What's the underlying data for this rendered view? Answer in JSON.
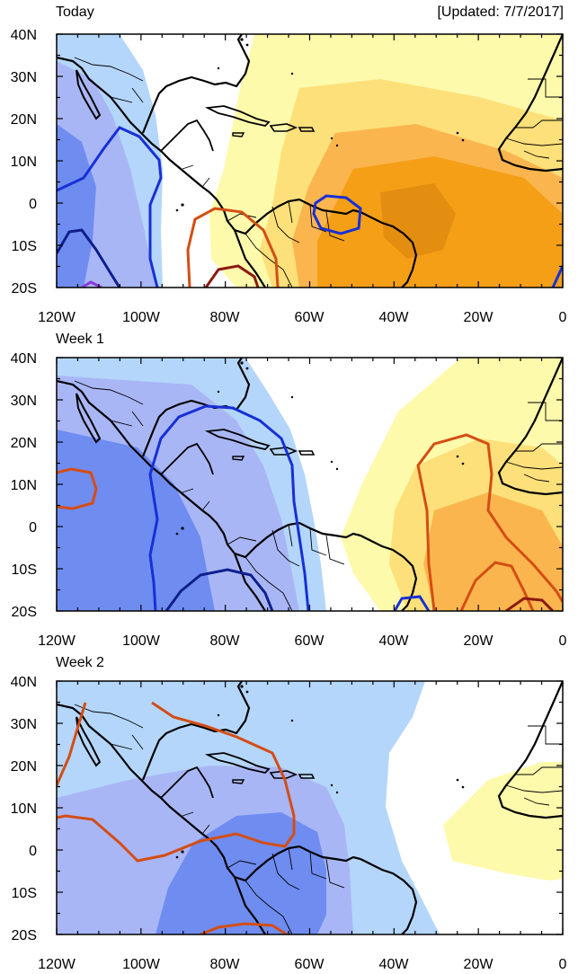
{
  "updated_label": "[Updated: 7/7/2017]",
  "colors": {
    "neg1": "#b4d6fa",
    "neg2": "#a9b6f6",
    "neg3": "#6f8cf0",
    "pos1": "#fefaab",
    "pos2": "#fde07a",
    "pos3": "#fbb54e",
    "pos4": "#f49f16",
    "pos5": "#e38e10",
    "contour_blue": "#1730d6",
    "contour_navy": "#0e1f8c",
    "contour_purple": "#8a3ad8",
    "contour_orange": "#d44d14",
    "contour_darkred": "#8c1a12",
    "land": "#000000"
  },
  "axes": {
    "x_labels": [
      "120W",
      "100W",
      "80W",
      "60W",
      "40W",
      "20W",
      "0"
    ],
    "y_labels": [
      "40N",
      "30N",
      "20N",
      "10N",
      "0",
      "10S",
      "20S"
    ]
  },
  "panels": [
    {
      "id": "today",
      "title": "Today"
    },
    {
      "id": "week1",
      "title": "Week 1"
    },
    {
      "id": "week2",
      "title": "Week 2"
    }
  ]
}
